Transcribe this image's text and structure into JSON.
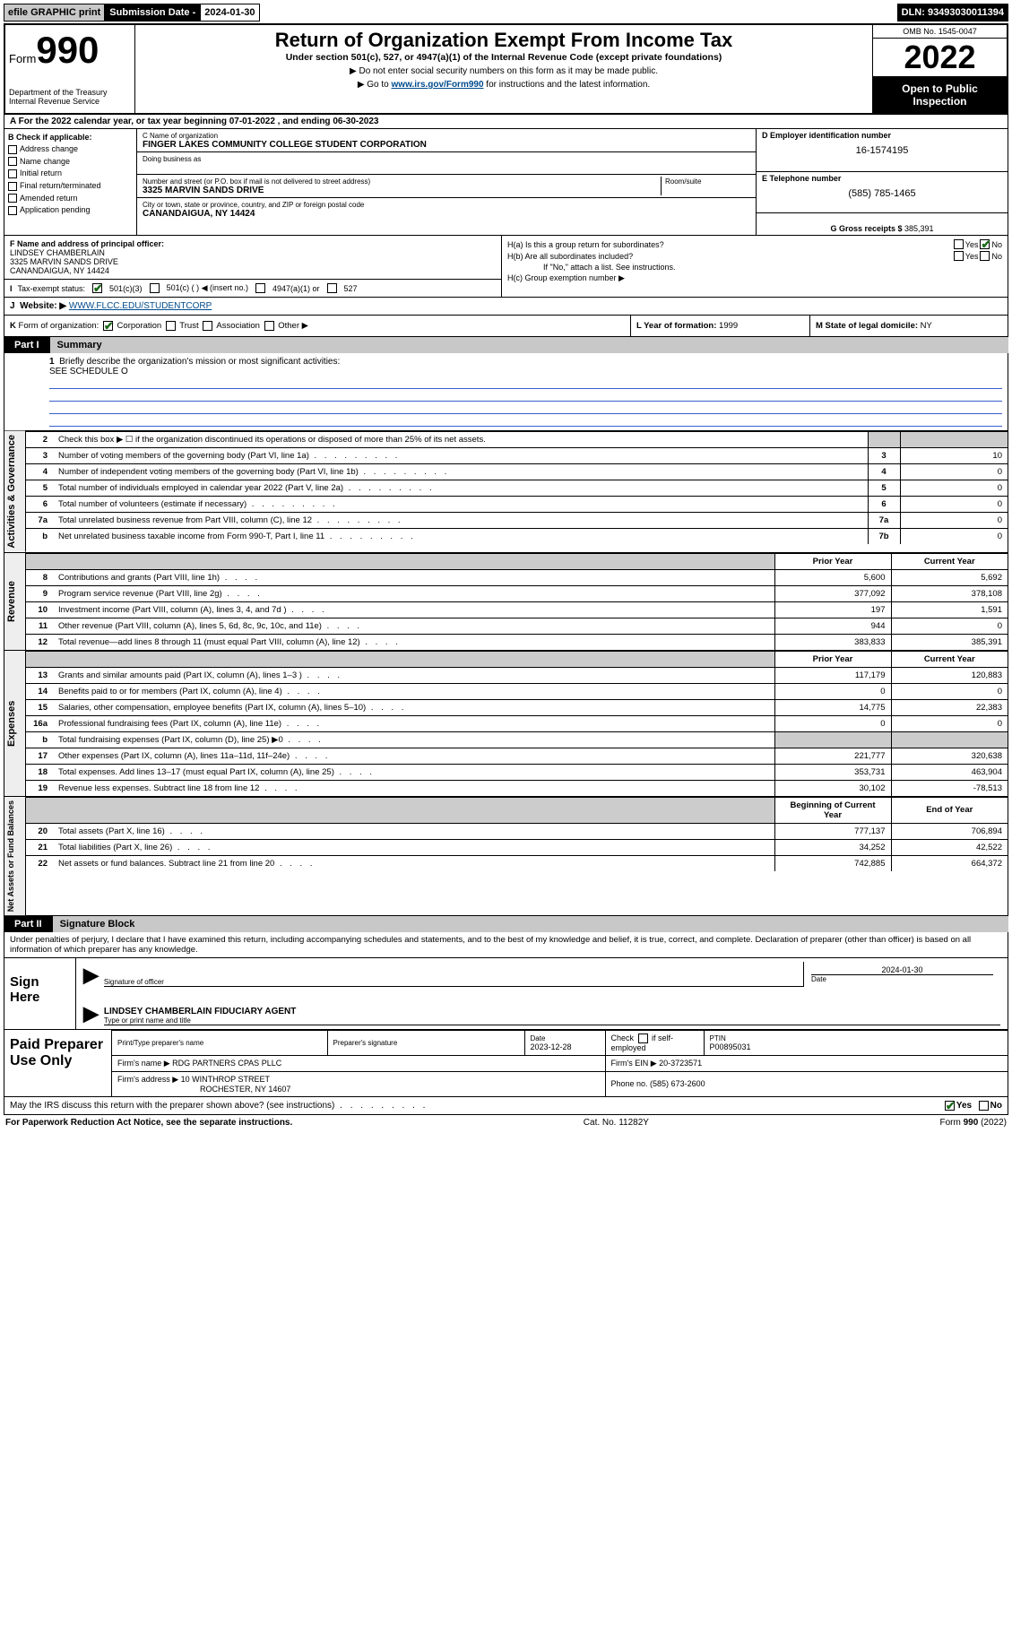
{
  "topbar": {
    "efile": "efile GRAPHIC print",
    "sub_date_label": "Submission Date - ",
    "sub_date": "2024-01-30",
    "dln": "DLN: 93493030011394"
  },
  "header": {
    "form_word": "Form",
    "form_num": "990",
    "dept": "Department of the Treasury\nInternal Revenue Service",
    "title": "Return of Organization Exempt From Income Tax",
    "sub": "Under section 501(c), 527, or 4947(a)(1) of the Internal Revenue Code (except private foundations)",
    "note1": "▶ Do not enter social security numbers on this form as it may be made public.",
    "note2_a": "▶ Go to ",
    "note2_link": "www.irs.gov/Form990",
    "note2_b": " for instructions and the latest information.",
    "omb": "OMB No. 1545-0047",
    "year": "2022",
    "open": "Open to Public Inspection"
  },
  "rowA": "A  For the 2022 calendar year, or tax year beginning 07-01-2022   , and ending 06-30-2023",
  "colB": {
    "hdr": "B Check if applicable:",
    "items": [
      "Address change",
      "Name change",
      "Initial return",
      "Final return/terminated",
      "Amended return",
      "Application pending"
    ]
  },
  "C": {
    "name_label": "C Name of organization",
    "name": "FINGER LAKES COMMUNITY COLLEGE STUDENT CORPORATION",
    "dba_label": "Doing business as",
    "addr_label": "Number and street (or P.O. box if mail is not delivered to street address)",
    "room_label": "Room/suite",
    "addr": "3325 MARVIN SANDS DRIVE",
    "city_label": "City or town, state or province, country, and ZIP or foreign postal code",
    "city": "CANANDAIGUA, NY  14424"
  },
  "D": {
    "label": "D Employer identification number",
    "val": "16-1574195"
  },
  "E": {
    "label": "E Telephone number",
    "val": "(585) 785-1465"
  },
  "G": {
    "label": "G Gross receipts $ ",
    "val": "385,391"
  },
  "F": {
    "label": "F  Name and address of principal officer:",
    "name": "LINDSEY CHAMBERLAIN",
    "addr1": "3325 MARVIN SANDS DRIVE",
    "addr2": "CANANDAIGUA, NY  14424"
  },
  "I": {
    "label": "Tax-exempt status:",
    "opts": [
      "501(c)(3)",
      "501(c) (  ) ◀ (insert no.)",
      "4947(a)(1) or",
      "527"
    ]
  },
  "H": {
    "a": "H(a)  Is this a group return for subordinates?",
    "b": "H(b)  Are all subordinates included?",
    "b_note": "If \"No,\" attach a list. See instructions.",
    "c": "H(c)  Group exemption number ▶",
    "yes": "Yes",
    "no": "No"
  },
  "J": {
    "label": "Website: ▶ ",
    "val": "WWW.FLCC.EDU/STUDENTCORP"
  },
  "K": "K Form of organization:   Corporation   Trust   Association   Other ▶",
  "L": {
    "label": "L Year of formation: ",
    "val": "1999"
  },
  "M": {
    "label": "M State of legal domicile: ",
    "val": "NY"
  },
  "part1": {
    "num": "Part I",
    "title": "Summary"
  },
  "q1": {
    "n": "1",
    "text": "Briefly describe the organization's mission or most significant activities:",
    "val": "SEE SCHEDULE O"
  },
  "ag_rows": [
    {
      "n": "2",
      "text": "Check this box ▶ ☐  if the organization discontinued its operations or disposed of more than 25% of its net assets.",
      "key": "",
      "val": ""
    },
    {
      "n": "3",
      "text": "Number of voting members of the governing body (Part VI, line 1a)",
      "key": "3",
      "val": "10"
    },
    {
      "n": "4",
      "text": "Number of independent voting members of the governing body (Part VI, line 1b)",
      "key": "4",
      "val": "0"
    },
    {
      "n": "5",
      "text": "Total number of individuals employed in calendar year 2022 (Part V, line 2a)",
      "key": "5",
      "val": "0"
    },
    {
      "n": "6",
      "text": "Total number of volunteers (estimate if necessary)",
      "key": "6",
      "val": "0"
    },
    {
      "n": "7a",
      "text": "Total unrelated business revenue from Part VIII, column (C), line 12",
      "key": "7a",
      "val": "0"
    },
    {
      "n": "b",
      "text": "Net unrelated business taxable income from Form 990-T, Part I, line 11",
      "key": "7b",
      "val": "0"
    }
  ],
  "rev_hdr": {
    "prior": "Prior Year",
    "cur": "Current Year"
  },
  "rev_rows": [
    {
      "n": "8",
      "text": "Contributions and grants (Part VIII, line 1h)",
      "p": "5,600",
      "c": "5,692"
    },
    {
      "n": "9",
      "text": "Program service revenue (Part VIII, line 2g)",
      "p": "377,092",
      "c": "378,108"
    },
    {
      "n": "10",
      "text": "Investment income (Part VIII, column (A), lines 3, 4, and 7d )",
      "p": "197",
      "c": "1,591"
    },
    {
      "n": "11",
      "text": "Other revenue (Part VIII, column (A), lines 5, 6d, 8c, 9c, 10c, and 11e)",
      "p": "944",
      "c": "0"
    },
    {
      "n": "12",
      "text": "Total revenue—add lines 8 through 11 (must equal Part VIII, column (A), line 12)",
      "p": "383,833",
      "c": "385,391"
    }
  ],
  "exp_rows": [
    {
      "n": "13",
      "text": "Grants and similar amounts paid (Part IX, column (A), lines 1–3 )",
      "p": "117,179",
      "c": "120,883"
    },
    {
      "n": "14",
      "text": "Benefits paid to or for members (Part IX, column (A), line 4)",
      "p": "0",
      "c": "0"
    },
    {
      "n": "15",
      "text": "Salaries, other compensation, employee benefits (Part IX, column (A), lines 5–10)",
      "p": "14,775",
      "c": "22,383"
    },
    {
      "n": "16a",
      "text": "Professional fundraising fees (Part IX, column (A), line 11e)",
      "p": "0",
      "c": "0"
    },
    {
      "n": "b",
      "text": "Total fundraising expenses (Part IX, column (D), line 25) ▶0",
      "p": "",
      "c": "",
      "grey": true
    },
    {
      "n": "17",
      "text": "Other expenses (Part IX, column (A), lines 11a–11d, 11f–24e)",
      "p": "221,777",
      "c": "320,638"
    },
    {
      "n": "18",
      "text": "Total expenses. Add lines 13–17 (must equal Part IX, column (A), line 25)",
      "p": "353,731",
      "c": "463,904"
    },
    {
      "n": "19",
      "text": "Revenue less expenses. Subtract line 18 from line 12",
      "p": "30,102",
      "c": "-78,513"
    }
  ],
  "na_hdr": {
    "prior": "Beginning of Current Year",
    "cur": "End of Year"
  },
  "na_rows": [
    {
      "n": "20",
      "text": "Total assets (Part X, line 16)",
      "p": "777,137",
      "c": "706,894"
    },
    {
      "n": "21",
      "text": "Total liabilities (Part X, line 26)",
      "p": "34,252",
      "c": "42,522"
    },
    {
      "n": "22",
      "text": "Net assets or fund balances. Subtract line 21 from line 20",
      "p": "742,885",
      "c": "664,372"
    }
  ],
  "part2": {
    "num": "Part II",
    "title": "Signature Block"
  },
  "part2_intro": "Under penalties of perjury, I declare that I have examined this return, including accompanying schedules and statements, and to the best of my knowledge and belief, it is true, correct, and complete. Declaration of preparer (other than officer) is based on all information of which preparer has any knowledge.",
  "sign": {
    "here": "Sign Here",
    "sig_label": "Signature of officer",
    "date": "2024-01-30",
    "date_label": "Date",
    "name": "LINDSEY CHAMBERLAIN  FIDUCIARY AGENT",
    "name_label": "Type or print name and title"
  },
  "prep": {
    "title": "Paid Preparer Use Only",
    "h1": "Print/Type preparer's name",
    "h2": "Preparer's signature",
    "h3": "Date",
    "date": "2023-12-28",
    "h4a": "Check",
    "h4b": "if self-employed",
    "h5": "PTIN",
    "ptin": "P00895031",
    "firm_name_l": "Firm's name    ▶",
    "firm_name": "RDG PARTNERS CPAS PLLC",
    "firm_ein_l": "Firm's EIN ▶ ",
    "firm_ein": "20-3723571",
    "firm_addr_l": "Firm's address ▶",
    "firm_addr1": "10 WINTHROP STREET",
    "firm_addr2": "ROCHESTER, NY  14607",
    "phone_l": "Phone no. ",
    "phone": "(585) 673-2600"
  },
  "footer_q": "May the IRS discuss this return with the preparer shown above? (see instructions)",
  "footer": {
    "l": "For Paperwork Reduction Act Notice, see the separate instructions.",
    "m": "Cat. No. 11282Y",
    "r": "Form 990 (2022)"
  },
  "tabs": {
    "ag": "Activities & Governance",
    "rev": "Revenue",
    "exp": "Expenses",
    "na": "Net Assets or Fund Balances"
  }
}
